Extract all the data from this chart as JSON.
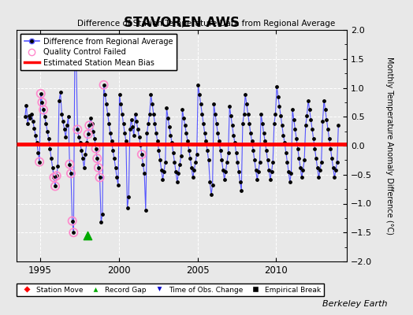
{
  "title": "STAVOREN AWS",
  "subtitle": "Difference of Station Temperature Data from Regional Average",
  "ylabel": "Monthly Temperature Anomaly Difference (°C)",
  "xlim": [
    1993.5,
    2014.5
  ],
  "ylim": [
    -2,
    2
  ],
  "yticks": [
    -2,
    -1.5,
    -1,
    -0.5,
    0,
    0.5,
    1,
    1.5,
    2
  ],
  "xticks": [
    1995,
    2000,
    2005,
    2010
  ],
  "bias_seg1": [
    1993.5,
    1998.0,
    0.03
  ],
  "bias_seg2": [
    1998.0,
    2014.5,
    0.03
  ],
  "record_gap_x": 1998.0,
  "record_gap_y": -1.55,
  "background_color": "#e8e8e8",
  "plot_bg_color": "#e8e8e8",
  "line_color": "#5555ff",
  "dot_color": "#000000",
  "bias_color": "#ff0000",
  "qc_color": "#ff88cc",
  "station_move_color": "#ff0000",
  "record_gap_color": "#00aa00",
  "obs_change_color": "#0000cc",
  "emp_break_color": "#000000",
  "berkeley_earth_text": "Berkeley Earth",
  "data": [
    [
      1994.042,
      0.5
    ],
    [
      1994.125,
      0.7
    ],
    [
      1994.208,
      0.38
    ],
    [
      1994.292,
      0.52
    ],
    [
      1994.375,
      0.48
    ],
    [
      1994.458,
      0.55
    ],
    [
      1994.542,
      0.42
    ],
    [
      1994.625,
      0.3
    ],
    [
      1994.708,
      0.18
    ],
    [
      1994.792,
      0.05
    ],
    [
      1994.875,
      -0.12
    ],
    [
      1994.958,
      -0.28
    ],
    [
      1995.042,
      0.9
    ],
    [
      1995.125,
      0.75
    ],
    [
      1995.208,
      0.62
    ],
    [
      1995.292,
      0.5
    ],
    [
      1995.375,
      0.38
    ],
    [
      1995.458,
      0.25
    ],
    [
      1995.542,
      0.12
    ],
    [
      1995.625,
      -0.05
    ],
    [
      1995.708,
      -0.22
    ],
    [
      1995.792,
      -0.38
    ],
    [
      1995.875,
      -0.55
    ],
    [
      1995.958,
      -0.7
    ],
    [
      1996.042,
      -0.52
    ],
    [
      1996.125,
      -0.35
    ],
    [
      1996.208,
      0.78
    ],
    [
      1996.292,
      0.92
    ],
    [
      1996.375,
      0.55
    ],
    [
      1996.458,
      0.42
    ],
    [
      1996.542,
      0.28
    ],
    [
      1996.625,
      0.15
    ],
    [
      1996.708,
      0.35
    ],
    [
      1996.792,
      0.5
    ],
    [
      1996.875,
      -0.32
    ],
    [
      1996.958,
      -0.48
    ],
    [
      1997.042,
      -1.3
    ],
    [
      1997.125,
      -1.5
    ],
    [
      1997.208,
      1.72
    ],
    [
      1997.292,
      1.55
    ],
    [
      1997.375,
      0.28
    ],
    [
      1997.458,
      0.15
    ],
    [
      1997.542,
      0.05
    ],
    [
      1997.625,
      -0.08
    ],
    [
      1997.708,
      -0.22
    ],
    [
      1997.792,
      -0.38
    ],
    [
      1997.875,
      -0.15
    ],
    [
      1997.958,
      0.05
    ],
    [
      1998.042,
      0.2
    ],
    [
      1998.125,
      0.35
    ],
    [
      1998.208,
      0.48
    ],
    [
      1998.292,
      0.38
    ],
    [
      1998.375,
      0.25
    ],
    [
      1998.458,
      0.12
    ],
    [
      1998.542,
      -0.05
    ],
    [
      1998.625,
      -0.22
    ],
    [
      1998.708,
      -0.38
    ],
    [
      1998.792,
      -0.55
    ],
    [
      1998.875,
      -1.32
    ],
    [
      1998.958,
      -1.18
    ],
    [
      1999.042,
      1.05
    ],
    [
      1999.125,
      0.88
    ],
    [
      1999.208,
      0.72
    ],
    [
      1999.292,
      0.55
    ],
    [
      1999.375,
      0.38
    ],
    [
      1999.458,
      0.22
    ],
    [
      1999.542,
      0.08
    ],
    [
      1999.625,
      -0.08
    ],
    [
      1999.708,
      -0.22
    ],
    [
      1999.792,
      -0.38
    ],
    [
      1999.875,
      -0.55
    ],
    [
      1999.958,
      -0.68
    ],
    [
      2000.042,
      0.88
    ],
    [
      2000.125,
      0.72
    ],
    [
      2000.208,
      0.55
    ],
    [
      2000.292,
      0.38
    ],
    [
      2000.375,
      0.22
    ],
    [
      2000.458,
      0.08
    ],
    [
      2000.542,
      -1.08
    ],
    [
      2000.625,
      -0.88
    ],
    [
      2000.708,
      0.28
    ],
    [
      2000.792,
      0.45
    ],
    [
      2000.875,
      0.32
    ],
    [
      2000.958,
      0.18
    ],
    [
      2001.042,
      0.55
    ],
    [
      2001.125,
      0.42
    ],
    [
      2001.208,
      0.28
    ],
    [
      2001.292,
      0.15
    ],
    [
      2001.375,
      0.02
    ],
    [
      2001.458,
      -0.15
    ],
    [
      2001.542,
      -0.32
    ],
    [
      2001.625,
      -0.48
    ],
    [
      2001.708,
      -1.12
    ],
    [
      2001.792,
      0.22
    ],
    [
      2001.875,
      0.38
    ],
    [
      2001.958,
      0.55
    ],
    [
      2002.042,
      0.88
    ],
    [
      2002.125,
      0.72
    ],
    [
      2002.208,
      0.55
    ],
    [
      2002.292,
      0.38
    ],
    [
      2002.375,
      0.22
    ],
    [
      2002.458,
      0.08
    ],
    [
      2002.542,
      -0.08
    ],
    [
      2002.625,
      -0.25
    ],
    [
      2002.708,
      -0.42
    ],
    [
      2002.792,
      -0.58
    ],
    [
      2002.875,
      -0.45
    ],
    [
      2002.958,
      -0.28
    ],
    [
      2003.042,
      0.65
    ],
    [
      2003.125,
      0.48
    ],
    [
      2003.208,
      0.32
    ],
    [
      2003.292,
      0.18
    ],
    [
      2003.375,
      0.05
    ],
    [
      2003.458,
      -0.12
    ],
    [
      2003.542,
      -0.28
    ],
    [
      2003.625,
      -0.45
    ],
    [
      2003.708,
      -0.62
    ],
    [
      2003.792,
      -0.48
    ],
    [
      2003.875,
      -0.32
    ],
    [
      2003.958,
      -0.18
    ],
    [
      2004.042,
      0.62
    ],
    [
      2004.125,
      0.48
    ],
    [
      2004.208,
      0.35
    ],
    [
      2004.292,
      0.22
    ],
    [
      2004.375,
      0.08
    ],
    [
      2004.458,
      -0.08
    ],
    [
      2004.542,
      -0.22
    ],
    [
      2004.625,
      -0.38
    ],
    [
      2004.708,
      -0.55
    ],
    [
      2004.792,
      -0.42
    ],
    [
      2004.875,
      -0.28
    ],
    [
      2004.958,
      -0.15
    ],
    [
      2005.042,
      1.05
    ],
    [
      2005.125,
      0.88
    ],
    [
      2005.208,
      0.72
    ],
    [
      2005.292,
      0.55
    ],
    [
      2005.375,
      0.38
    ],
    [
      2005.458,
      0.22
    ],
    [
      2005.542,
      0.08
    ],
    [
      2005.625,
      -0.08
    ],
    [
      2005.708,
      -0.25
    ],
    [
      2005.792,
      -0.62
    ],
    [
      2005.875,
      -0.85
    ],
    [
      2005.958,
      -0.68
    ],
    [
      2006.042,
      0.72
    ],
    [
      2006.125,
      0.55
    ],
    [
      2006.208,
      0.38
    ],
    [
      2006.292,
      0.22
    ],
    [
      2006.375,
      0.08
    ],
    [
      2006.458,
      -0.08
    ],
    [
      2006.542,
      -0.25
    ],
    [
      2006.625,
      -0.42
    ],
    [
      2006.708,
      -0.58
    ],
    [
      2006.792,
      -0.45
    ],
    [
      2006.875,
      -0.28
    ],
    [
      2006.958,
      -0.12
    ],
    [
      2007.042,
      0.68
    ],
    [
      2007.125,
      0.52
    ],
    [
      2007.208,
      0.35
    ],
    [
      2007.292,
      0.18
    ],
    [
      2007.375,
      0.05
    ],
    [
      2007.458,
      -0.12
    ],
    [
      2007.542,
      -0.28
    ],
    [
      2007.625,
      -0.45
    ],
    [
      2007.708,
      -0.62
    ],
    [
      2007.792,
      -0.78
    ],
    [
      2007.875,
      0.38
    ],
    [
      2007.958,
      0.55
    ],
    [
      2008.042,
      0.88
    ],
    [
      2008.125,
      0.72
    ],
    [
      2008.208,
      0.55
    ],
    [
      2008.292,
      0.38
    ],
    [
      2008.375,
      0.22
    ],
    [
      2008.458,
      0.08
    ],
    [
      2008.542,
      -0.08
    ],
    [
      2008.625,
      -0.25
    ],
    [
      2008.708,
      -0.42
    ],
    [
      2008.792,
      -0.58
    ],
    [
      2008.875,
      -0.45
    ],
    [
      2008.958,
      -0.28
    ],
    [
      2009.042,
      0.55
    ],
    [
      2009.125,
      0.38
    ],
    [
      2009.208,
      0.22
    ],
    [
      2009.292,
      0.08
    ],
    [
      2009.375,
      -0.08
    ],
    [
      2009.458,
      -0.25
    ],
    [
      2009.542,
      -0.42
    ],
    [
      2009.625,
      -0.58
    ],
    [
      2009.708,
      -0.45
    ],
    [
      2009.792,
      -0.28
    ],
    [
      2009.875,
      0.38
    ],
    [
      2009.958,
      0.55
    ],
    [
      2010.042,
      1.02
    ],
    [
      2010.125,
      0.85
    ],
    [
      2010.208,
      0.68
    ],
    [
      2010.292,
      0.52
    ],
    [
      2010.375,
      0.35
    ],
    [
      2010.458,
      0.18
    ],
    [
      2010.542,
      0.05
    ],
    [
      2010.625,
      -0.12
    ],
    [
      2010.708,
      -0.28
    ],
    [
      2010.792,
      -0.45
    ],
    [
      2010.875,
      -0.62
    ],
    [
      2010.958,
      -0.48
    ],
    [
      2011.042,
      0.62
    ],
    [
      2011.125,
      0.45
    ],
    [
      2011.208,
      0.28
    ],
    [
      2011.292,
      0.12
    ],
    [
      2011.375,
      -0.05
    ],
    [
      2011.458,
      -0.22
    ],
    [
      2011.542,
      -0.38
    ],
    [
      2011.625,
      -0.55
    ],
    [
      2011.708,
      -0.42
    ],
    [
      2011.792,
      -0.25
    ],
    [
      2011.875,
      0.35
    ],
    [
      2011.958,
      0.52
    ],
    [
      2012.042,
      0.78
    ],
    [
      2012.125,
      0.62
    ],
    [
      2012.208,
      0.45
    ],
    [
      2012.292,
      0.28
    ],
    [
      2012.375,
      0.12
    ],
    [
      2012.458,
      -0.05
    ],
    [
      2012.542,
      -0.22
    ],
    [
      2012.625,
      -0.38
    ],
    [
      2012.708,
      -0.55
    ],
    [
      2012.792,
      -0.42
    ],
    [
      2012.875,
      -0.28
    ],
    [
      2012.958,
      0.42
    ],
    [
      2013.042,
      0.78
    ],
    [
      2013.125,
      0.62
    ],
    [
      2013.208,
      0.45
    ],
    [
      2013.292,
      0.28
    ],
    [
      2013.375,
      0.12
    ],
    [
      2013.458,
      -0.05
    ],
    [
      2013.542,
      -0.22
    ],
    [
      2013.625,
      -0.38
    ],
    [
      2013.708,
      -0.55
    ],
    [
      2013.792,
      -0.42
    ],
    [
      2013.875,
      -0.28
    ],
    [
      2013.958,
      0.35
    ]
  ],
  "qc_failed_points": [
    [
      1994.958,
      -0.28
    ],
    [
      1995.042,
      0.9
    ],
    [
      1995.125,
      0.75
    ],
    [
      1995.208,
      0.62
    ],
    [
      1995.875,
      -0.55
    ],
    [
      1995.958,
      -0.7
    ],
    [
      1996.042,
      -0.52
    ],
    [
      1996.875,
      -0.32
    ],
    [
      1996.958,
      -0.48
    ],
    [
      1997.042,
      -1.3
    ],
    [
      1997.125,
      -1.5
    ],
    [
      1997.375,
      0.28
    ],
    [
      1998.042,
      0.2
    ],
    [
      1998.125,
      0.35
    ],
    [
      1998.542,
      -0.05
    ],
    [
      1998.625,
      -0.22
    ],
    [
      1998.708,
      -0.38
    ],
    [
      1998.792,
      -0.55
    ],
    [
      1999.042,
      1.05
    ],
    [
      2001.458,
      -0.15
    ]
  ]
}
